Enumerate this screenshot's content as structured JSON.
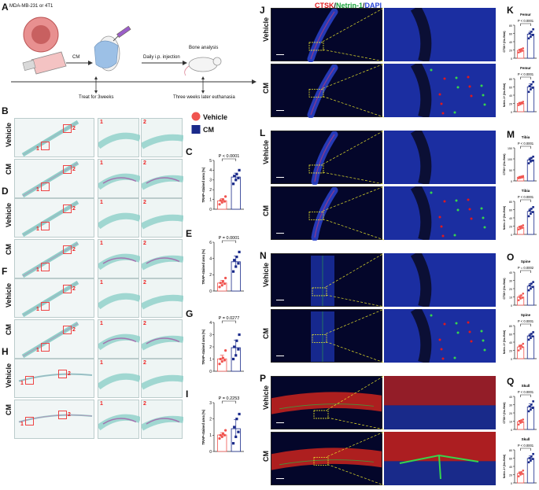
{
  "panel_letters": {
    "A": "A",
    "B": "B",
    "C": "C",
    "D": "D",
    "E": "E",
    "F": "F",
    "G": "G",
    "H": "H",
    "I": "I",
    "J": "J",
    "K": "K",
    "L": "L",
    "M": "M",
    "N": "N",
    "O": "O",
    "P": "P",
    "Q": "Q"
  },
  "schematic": {
    "cells_label": "MDA-MB-231 or 4T1",
    "cm_label": "CM",
    "injection_label": "Daily i.p. injection",
    "analysis_label": "Bone analysis",
    "treat_label": "Treat for 3weeks",
    "euthanasia_label": "Three weeks later euthanasia"
  },
  "legend": {
    "vehicle": "Vehicle",
    "cm": "CM",
    "vehicle_color": "#f0544f",
    "cm_color": "#1a2a8a"
  },
  "row_labels": {
    "vehicle": "Vehicle",
    "cm": "CM"
  },
  "zoom_tags": {
    "one": "1",
    "two": "2"
  },
  "fluo_title": {
    "ctsk": "CTSK",
    "sep1": "/",
    "netrin": "Netrin-1",
    "sep2": "/",
    "dapi": "DAPI"
  },
  "colors": {
    "ctsk": "#e0191e",
    "netrin": "#1aa33a",
    "dapi": "#2a46d8"
  },
  "trap_charts": [
    {
      "panel": "C",
      "ylabel": "TRAP-stained area (%)",
      "pvalue": "P < 0.0001",
      "yticks": [
        "0",
        "1",
        "2",
        "3",
        "4",
        "5"
      ],
      "ymax": 5,
      "vehicle_points": [
        0.5,
        0.7,
        0.8,
        0.9,
        1.0,
        1.3
      ],
      "cm_points": [
        2.6,
        3.0,
        3.2,
        3.4,
        3.6,
        4.0
      ]
    },
    {
      "panel": "E",
      "ylabel": "TRAP-stained area (%)",
      "pvalue": "P = 0.0001",
      "yticks": [
        "0",
        "2",
        "4",
        "6"
      ],
      "ymax": 6,
      "vehicle_points": [
        0.5,
        0.7,
        0.9,
        1.0,
        1.2,
        1.6
      ],
      "cm_points": [
        2.4,
        3.0,
        3.4,
        3.8,
        4.2,
        4.8
      ]
    },
    {
      "panel": "G",
      "ylabel": "TRAP-stained area (%)",
      "pvalue": "P = 0.0277",
      "yticks": [
        "0",
        "1",
        "2",
        "3",
        "4"
      ],
      "ymax": 4,
      "vehicle_points": [
        0.6,
        0.8,
        0.9,
        1.0,
        1.1,
        1.7
      ],
      "cm_points": [
        1.0,
        1.3,
        1.8,
        2.0,
        2.5,
        3.0
      ]
    },
    {
      "panel": "I",
      "ylabel": "TRAP-stained area (%)",
      "pvalue": "P = 0.2253",
      "yticks": [
        "0",
        "1",
        "2",
        "3"
      ],
      "ymax": 3,
      "vehicle_points": [
        0.8,
        0.9,
        1.0,
        1.0,
        1.1,
        1.3
      ],
      "cm_points": [
        0.5,
        0.9,
        1.2,
        1.5,
        2.0,
        2.3
      ]
    }
  ],
  "fluo_charts": [
    {
      "panel": "K",
      "title": "Femur",
      "ylabel": "CTSK+ (No./field)",
      "pvalue": "P < 0.0001",
      "yticks": [
        "0",
        "20",
        "40",
        "60",
        "80"
      ],
      "ymax": 80,
      "vehicle_points": [
        14,
        16,
        18,
        20,
        22,
        24
      ],
      "cm_points": [
        48,
        52,
        56,
        60,
        64,
        70
      ]
    },
    {
      "panel": "K2",
      "title": "Femur",
      "ylabel": "Netrin-1+ (No./field)",
      "pvalue": "P < 0.0001",
      "yticks": [
        "0",
        "20",
        "40",
        "60",
        "80"
      ],
      "ymax": 80,
      "vehicle_points": [
        16,
        18,
        20,
        21,
        22,
        24
      ],
      "cm_points": [
        48,
        54,
        58,
        62,
        66,
        72
      ]
    },
    {
      "panel": "M",
      "title": "Tibia",
      "ylabel": "CTSK+ (No./field)",
      "pvalue": "P < 0.0001",
      "yticks": [
        "0",
        "50",
        "100",
        "150"
      ],
      "ymax": 150,
      "vehicle_points": [
        12,
        14,
        16,
        18,
        20,
        22
      ],
      "cm_points": [
        80,
        88,
        92,
        98,
        104,
        110
      ]
    },
    {
      "panel": "M2",
      "title": "Tibia",
      "ylabel": "Netrin-1+ (No./field)",
      "pvalue": "P < 0.0001",
      "yticks": [
        "0",
        "20",
        "40",
        "60",
        "80"
      ],
      "ymax": 80,
      "vehicle_points": [
        12,
        14,
        16,
        18,
        20,
        22
      ],
      "cm_points": [
        44,
        50,
        54,
        58,
        62,
        66
      ]
    },
    {
      "panel": "O",
      "title": "Spine",
      "ylabel": "CTSK+ (No./field)",
      "pvalue": "P = 0.0002",
      "yticks": [
        "0",
        "10",
        "20",
        "30",
        "40"
      ],
      "ymax": 40,
      "vehicle_points": [
        6,
        8,
        9,
        10,
        12,
        14
      ],
      "cm_points": [
        18,
        20,
        22,
        24,
        26,
        28
      ]
    },
    {
      "panel": "O2",
      "title": "Spine",
      "ylabel": "Netrin-1+ (No./field)",
      "pvalue": "P < 0.0001",
      "yticks": [
        "0",
        "20",
        "40",
        "60",
        "80"
      ],
      "ymax": 80,
      "vehicle_points": [
        20,
        24,
        28,
        30,
        32,
        36
      ],
      "cm_points": [
        46,
        50,
        54,
        56,
        60,
        64
      ]
    },
    {
      "panel": "Q",
      "title": "Skull",
      "ylabel": "CTSK+ (No./field)",
      "pvalue": "P < 0.0001",
      "yticks": [
        "0",
        "10",
        "20",
        "30",
        "40"
      ],
      "ymax": 40,
      "vehicle_points": [
        6,
        8,
        9,
        10,
        11,
        12
      ],
      "cm_points": [
        22,
        24,
        26,
        28,
        30,
        34
      ]
    },
    {
      "panel": "Q2",
      "title": "Skull",
      "ylabel": "Netrin-1+ (No./field)",
      "pvalue": "P < 0.0001",
      "yticks": [
        "0",
        "20",
        "40",
        "60",
        "80"
      ],
      "ymax": 80,
      "vehicle_points": [
        16,
        20,
        22,
        24,
        26,
        30
      ],
      "cm_points": [
        50,
        54,
        58,
        60,
        64,
        70
      ]
    }
  ]
}
